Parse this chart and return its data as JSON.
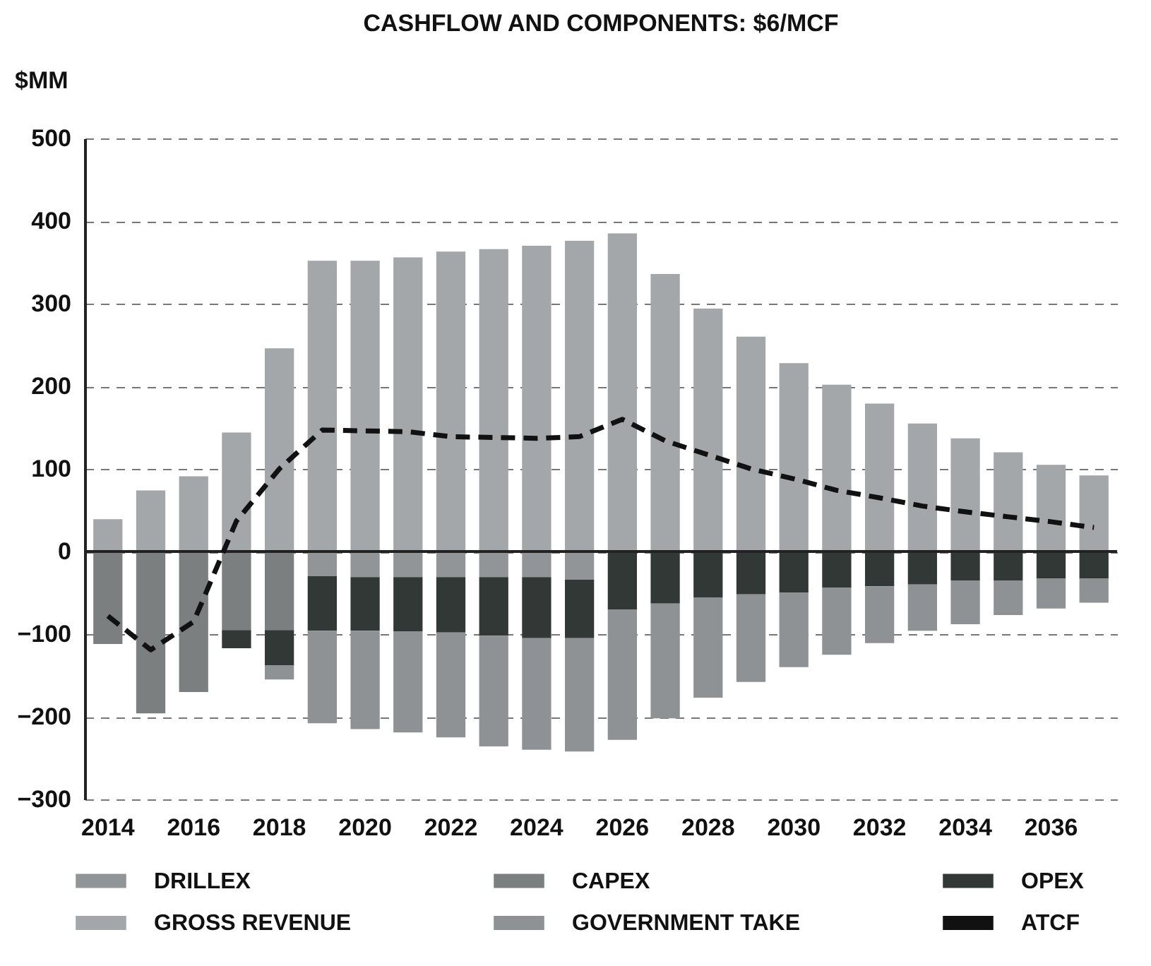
{
  "chart_data": {
    "type": "bar",
    "stacked": true,
    "title": "CASHFLOW AND COMPONENTS: $6/MCF",
    "ylabel": "$MM",
    "categories": [
      "2014",
      null,
      "2016",
      null,
      "2018",
      null,
      "2020",
      null,
      "2022",
      null,
      "2024",
      null,
      "2026",
      null,
      "2028",
      null,
      "2030",
      null,
      "2032",
      null,
      "2034",
      null,
      "2036",
      null
    ],
    "series": [
      {
        "name": "DRILLEX",
        "color": "#929597",
        "values": [
          null,
          null,
          null,
          null,
          null,
          -30,
          -31,
          -31,
          -31,
          -31,
          -31,
          -34,
          null,
          null,
          null,
          null,
          null,
          null,
          null,
          null,
          null,
          null,
          null,
          null
        ]
      },
      {
        "name": "CAPEX",
        "color": "#7b7f80",
        "values": [
          -112,
          -196,
          -170,
          -95,
          -95,
          null,
          null,
          null,
          null,
          null,
          null,
          null,
          null,
          null,
          null,
          null,
          null,
          null,
          null,
          null,
          null,
          null,
          null,
          null
        ]
      },
      {
        "name": "OPEX",
        "color": "#323835",
        "values": [
          null,
          null,
          null,
          -22,
          -43,
          -66,
          -65,
          -66,
          -67,
          -71,
          -74,
          -71,
          -70,
          -63,
          -56,
          -52,
          -50,
          -44,
          -42,
          -40,
          -35,
          -35,
          -33,
          -33
        ]
      },
      {
        "name": "GROSS REVENUE",
        "color": "#a3a7aa",
        "values": [
          39,
          74,
          91,
          144,
          246,
          352,
          352,
          356,
          363,
          366,
          370,
          376,
          385,
          336,
          294,
          260,
          228,
          202,
          179,
          155,
          137,
          120,
          105,
          92
        ]
      },
      {
        "name": "GOVERNMENT TAKE",
        "color": "#8e9294",
        "values": [
          null,
          null,
          null,
          null,
          -17,
          -112,
          -119,
          -122,
          -127,
          -134,
          -135,
          -137,
          -158,
          -139,
          -121,
          -106,
          -90,
          -81,
          -69,
          -56,
          -53,
          -42,
          -36,
          -29
        ]
      },
      {
        "name": "ATCF",
        "type": "line",
        "color": "#111111",
        "values": [
          -78,
          -119,
          -85,
          37,
          100,
          147,
          146,
          145,
          139,
          138,
          137,
          139,
          160,
          134,
          117,
          100,
          88,
          74,
          65,
          55,
          48,
          42,
          36,
          29
        ]
      }
    ],
    "ylim": [
      -300,
      500
    ],
    "yticks": [
      -300,
      -200,
      -100,
      0,
      100,
      200,
      300,
      400,
      500
    ],
    "ref_lines": [
      {
        "axis": "y",
        "value": 0,
        "color": "#222222"
      }
    ],
    "grid": "y",
    "legend": "bottom",
    "line_style": "dashed"
  }
}
